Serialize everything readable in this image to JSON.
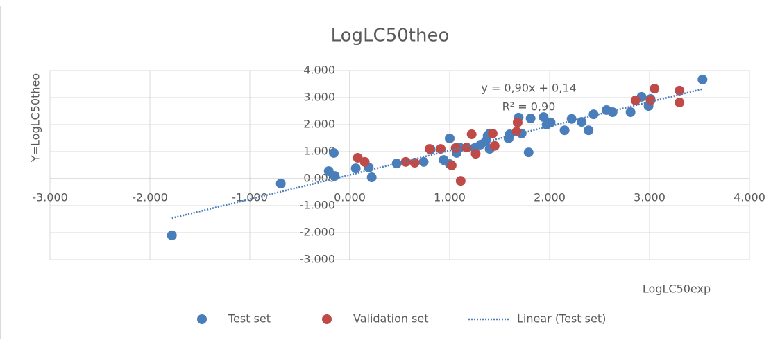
{
  "chart_data": {
    "type": "scatter",
    "title": "LogLC50theo",
    "x_label": "LogLC50exp",
    "y_label": "Y=LogLC50theo",
    "xlim": [
      -3,
      4
    ],
    "ylim": [
      -3,
      4
    ],
    "xticks": [
      {
        "value": -3,
        "label": "-3.000"
      },
      {
        "value": -2,
        "label": "-2.000"
      },
      {
        "value": -1,
        "label": "-1.000"
      },
      {
        "value": 0,
        "label": "0.000"
      },
      {
        "value": 1,
        "label": "1.000"
      },
      {
        "value": 2,
        "label": "2.000"
      },
      {
        "value": 3,
        "label": "3.000"
      },
      {
        "value": 4,
        "label": "4.000"
      }
    ],
    "yticks": [
      {
        "value": -3,
        "label": "-3.000"
      },
      {
        "value": -2,
        "label": "-2.000"
      },
      {
        "value": -1,
        "label": "-1.000"
      },
      {
        "value": 0,
        "label": "0.000"
      },
      {
        "value": 1,
        "label": "1.000"
      },
      {
        "value": 2,
        "label": "2.000"
      },
      {
        "value": 3,
        "label": "3.000"
      },
      {
        "value": 4,
        "label": "4.000"
      }
    ],
    "grid": true,
    "legend": "bottom",
    "series": [
      {
        "name": "Test set",
        "color": "#4a7ebb",
        "x": [
          -1.78,
          -0.69,
          -0.21,
          -0.16,
          -0.15,
          0.06,
          0.19,
          0.22,
          0.47,
          0.74,
          0.81,
          0.94,
          1.0,
          1.0,
          1.07,
          1.1,
          1.25,
          1.31,
          1.36,
          1.38,
          1.4,
          1.4,
          1.59,
          1.6,
          1.69,
          1.72,
          1.81,
          1.79,
          1.94,
          1.97,
          2.01,
          2.15,
          2.22,
          2.32,
          2.39,
          2.44,
          2.57,
          2.63,
          2.81,
          2.92,
          2.99,
          3.01,
          3.53
        ],
        "values": [
          -2.1,
          -0.18,
          0.28,
          0.95,
          0.1,
          0.38,
          0.41,
          0.05,
          0.56,
          0.62,
          1.08,
          0.69,
          1.49,
          0.54,
          0.95,
          1.15,
          1.13,
          1.26,
          1.38,
          1.59,
          1.1,
          1.67,
          1.49,
          1.64,
          2.26,
          1.67,
          2.23,
          0.97,
          2.28,
          2.0,
          2.08,
          1.79,
          2.21,
          2.1,
          1.79,
          2.38,
          2.54,
          2.46,
          2.46,
          3.03,
          2.69,
          2.95,
          3.67
        ]
      },
      {
        "name": "Validation set",
        "color": "#be4b48",
        "x": [
          0.08,
          0.15,
          0.56,
          0.65,
          0.8,
          0.91,
          1.02,
          1.06,
          1.11,
          1.17,
          1.22,
          1.26,
          1.43,
          1.45,
          1.67,
          1.68,
          2.86,
          3.01,
          3.05,
          3.3,
          3.3
        ],
        "values": [
          0.77,
          0.62,
          0.62,
          0.59,
          1.1,
          1.1,
          0.49,
          1.13,
          -0.08,
          1.15,
          1.64,
          0.92,
          1.67,
          1.21,
          1.74,
          2.08,
          2.9,
          2.9,
          3.33,
          3.26,
          2.82
        ]
      }
    ],
    "trendline": {
      "name": "Linear (Test set)",
      "color": "#4a7ebb",
      "slope": 0.9,
      "intercept": 0.14,
      "equation": "y = 0,90x + 0,14",
      "r_squared": "R² = 0,90"
    }
  }
}
